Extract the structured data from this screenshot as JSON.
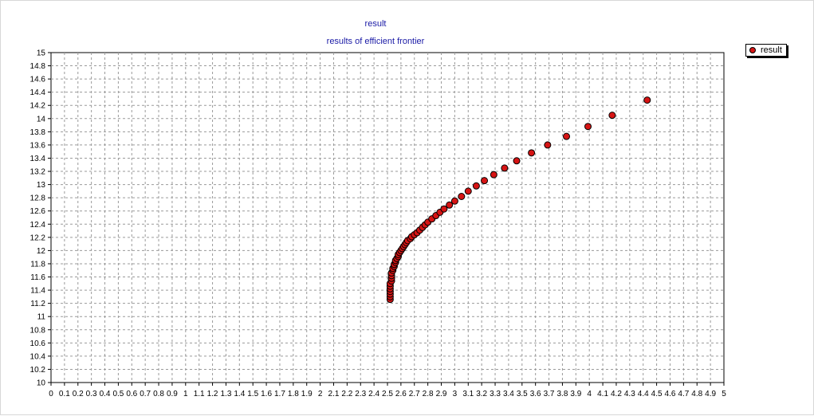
{
  "chart_data": {
    "type": "scatter",
    "title": "result",
    "subtitle": "results of efficient frontier",
    "xlabel": "",
    "ylabel": "",
    "xlim": [
      0,
      5
    ],
    "ylim": [
      10,
      15
    ],
    "x_ticks": [
      "0",
      "0.1",
      "0.2",
      "0.3",
      "0.4",
      "0.5",
      "0.6",
      "0.7",
      "0.8",
      "0.9",
      "1",
      "1.1",
      "1.2",
      "1.3",
      "1.4",
      "1.5",
      "1.6",
      "1.7",
      "1.8",
      "1.9",
      "2",
      "2.1",
      "2.2",
      "2.3",
      "2.4",
      "2.5",
      "2.6",
      "2.7",
      "2.8",
      "2.9",
      "3",
      "3.1",
      "3.2",
      "3.3",
      "3.4",
      "3.5",
      "3.6",
      "3.7",
      "3.8",
      "3.9",
      "4",
      "4.1",
      "4.2",
      "4.3",
      "4.4",
      "4.5",
      "4.6",
      "4.7",
      "4.8",
      "4.9",
      "5"
    ],
    "y_ticks": [
      "10",
      "10.2",
      "10.4",
      "10.6",
      "10.8",
      "11",
      "11.2",
      "11.4",
      "11.6",
      "11.8",
      "12",
      "12.2",
      "12.4",
      "12.6",
      "12.8",
      "13",
      "13.2",
      "13.4",
      "13.6",
      "13.8",
      "14",
      "14.2",
      "14.4",
      "14.6",
      "14.8",
      "15"
    ],
    "grid": true,
    "legend_position": "top-right",
    "series": [
      {
        "name": "result",
        "color": "#d61414",
        "x": [
          2.52,
          2.52,
          2.52,
          2.52,
          2.52,
          2.52,
          2.52,
          2.53,
          2.53,
          2.53,
          2.53,
          2.54,
          2.54,
          2.55,
          2.55,
          2.56,
          2.56,
          2.57,
          2.58,
          2.58,
          2.59,
          2.6,
          2.61,
          2.62,
          2.63,
          2.64,
          2.65,
          2.67,
          2.68,
          2.7,
          2.72,
          2.74,
          2.76,
          2.78,
          2.8,
          2.83,
          2.86,
          2.89,
          2.92,
          2.96,
          3.0,
          3.05,
          3.1,
          3.16,
          3.22,
          3.29,
          3.37,
          3.46,
          3.57,
          3.69,
          3.83,
          3.99,
          4.17,
          4.43
        ],
        "y": [
          11.26,
          11.3,
          11.34,
          11.38,
          11.42,
          11.46,
          11.5,
          11.54,
          11.58,
          11.62,
          11.66,
          11.7,
          11.73,
          11.76,
          11.79,
          11.82,
          11.85,
          11.88,
          11.91,
          11.94,
          11.97,
          12.0,
          12.03,
          12.06,
          12.09,
          12.12,
          12.15,
          12.18,
          12.21,
          12.24,
          12.27,
          12.31,
          12.35,
          12.39,
          12.43,
          12.48,
          12.53,
          12.58,
          12.63,
          12.69,
          12.75,
          12.82,
          12.9,
          12.98,
          13.06,
          13.15,
          13.25,
          13.36,
          13.48,
          13.6,
          13.73,
          13.88,
          14.05,
          14.28
        ]
      }
    ]
  }
}
